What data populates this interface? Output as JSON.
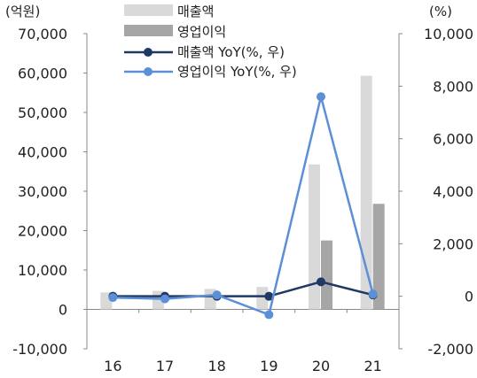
{
  "chart_data": {
    "type": "bar+line",
    "categories": [
      "16",
      "17",
      "18",
      "19",
      "20",
      "21"
    ],
    "left_axis": {
      "unit_label": "(억원)",
      "min": -10000,
      "max": 70000,
      "ticks": [
        -10000,
        0,
        10000,
        20000,
        30000,
        40000,
        50000,
        60000,
        70000
      ],
      "tick_labels": [
        "-10,000",
        "0",
        "10,000",
        "20,000",
        "30,000",
        "40,000",
        "50,000",
        "60,000",
        "70,000"
      ]
    },
    "right_axis": {
      "unit_label": "(%)",
      "min": -2000,
      "max": 10000,
      "ticks": [
        -2000,
        0,
        2000,
        4000,
        6000,
        8000,
        10000
      ],
      "tick_labels": [
        "-2,000",
        "0",
        "2,000",
        "4,000",
        "6,000",
        "8,000",
        "10,000"
      ]
    },
    "bar_series": [
      {
        "name": "매출액",
        "color": "#d9d9d9",
        "values": [
          4300,
          4700,
          5200,
          5700,
          36800,
          59300
        ]
      },
      {
        "name": "영업이익",
        "color": "#a6a6a6",
        "values": [
          0,
          0,
          0,
          0,
          17500,
          26800
        ]
      }
    ],
    "line_series": [
      {
        "name": "매출액 YoY(%, 우)",
        "color": "#1f3864",
        "values": [
          0,
          0,
          0,
          0,
          550,
          50
        ]
      },
      {
        "name": "영업이익 YoY(%, 우)",
        "color": "#5b8fd6",
        "values": [
          -50,
          -100,
          50,
          -700,
          7600,
          80
        ]
      }
    ],
    "grid": false,
    "legend_position": "top-center"
  }
}
